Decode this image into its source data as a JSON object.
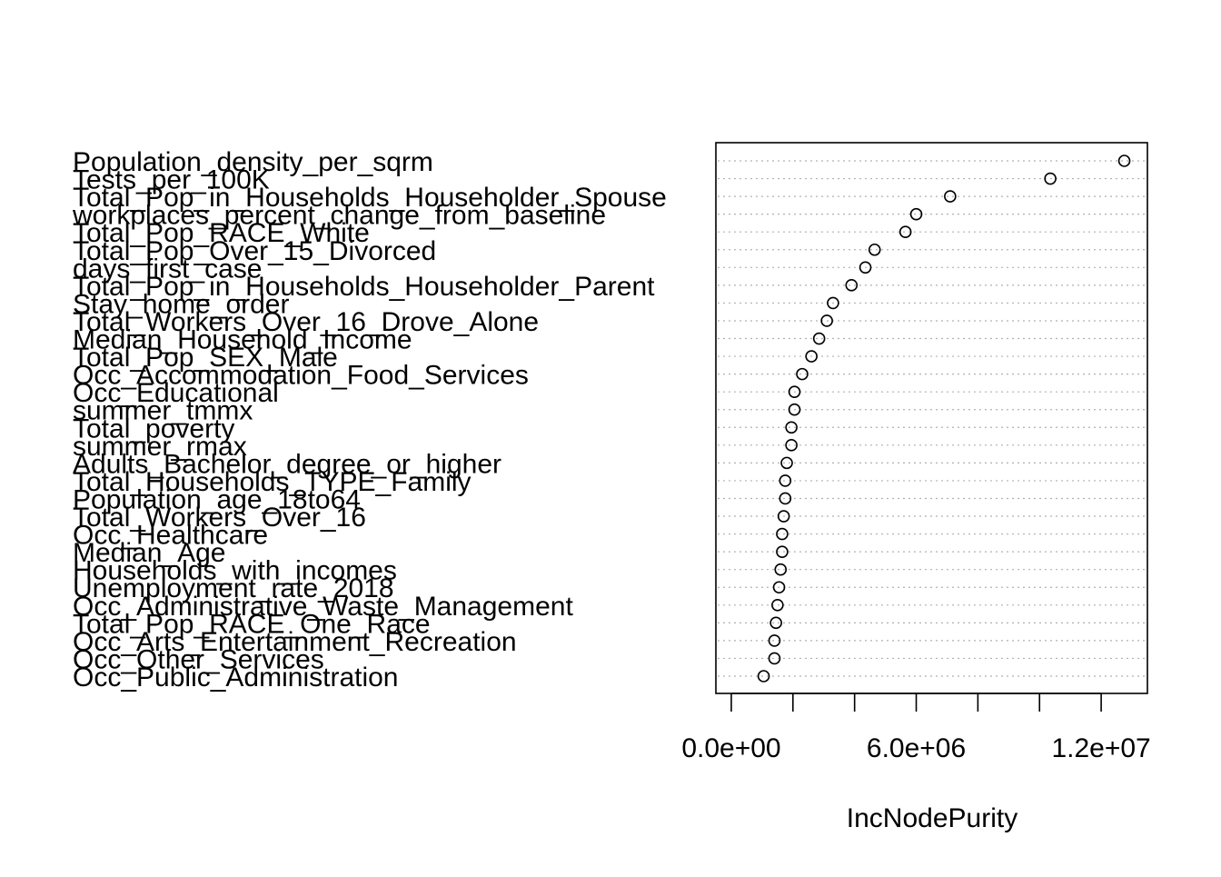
{
  "chart_data": {
    "type": "scatter",
    "title": "",
    "xlabel": "IncNodePurity",
    "ylabel": "",
    "xlim": [
      -500000,
      13500000
    ],
    "x_ticks": [
      0,
      2000000,
      4000000,
      6000000,
      8000000,
      10000000,
      12000000
    ],
    "x_tick_labels": [
      "0.0e+00",
      "",
      "",
      "6.0e+06",
      "",
      "",
      "1.2e+07"
    ],
    "grid": "dotted horizontal lines per variable",
    "categories": [
      "Population_density_per_sqrm",
      "Tests_per_100K",
      "Total_Pop_in_Households_Householder_Spouse",
      "workplaces_percent_change_from_baseline",
      "Total_Pop_RACE_White",
      "Total_Pop_Over_15_Divorced",
      "days_first_case",
      "Total_Pop_in_Households_Householder_Parent",
      "Stay_home_order",
      "Total_Workers_Over_16_Drove_Alone",
      "Median_Household_Income",
      "Total_Pop_SEX_Male",
      "Occ_Accommodation_Food_Services",
      "Occ_Educational",
      "summer_tmmx",
      "Total_poverty",
      "summer_rmax",
      "Adults_Bachelor_degree_or_higher",
      "Total_Households_TYPE_Family",
      "Population_age_18to64",
      "Total_Workers_Over_16",
      "Occ_Healthcare",
      "Median_Age",
      "Households_with_incomes",
      "Unemployment_rate_2018",
      "Occ_Administrative_Waste_Management",
      "Total_Pop_RACE_One_Race",
      "Occ_Arts_Entertainment_Recreation",
      "Occ_Other_Services",
      "Occ_Public_Administration"
    ],
    "values": [
      12750000,
      10350000,
      7100000,
      6000000,
      5650000,
      4650000,
      4350000,
      3900000,
      3300000,
      3100000,
      2850000,
      2600000,
      2300000,
      2050000,
      2050000,
      1950000,
      1950000,
      1800000,
      1750000,
      1750000,
      1700000,
      1650000,
      1650000,
      1600000,
      1550000,
      1500000,
      1450000,
      1400000,
      1400000,
      1050000
    ]
  }
}
